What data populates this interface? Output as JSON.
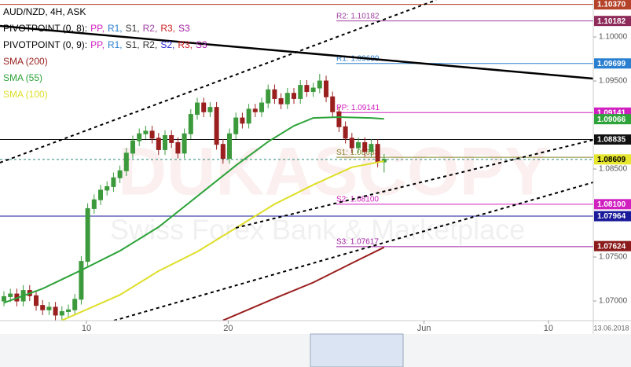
{
  "chart_data": {
    "type": "candlestick",
    "title": "AUD/NZD, 4H, ASK",
    "indicators": [
      {
        "name": "PIVOTPOINT (0, 8):",
        "items": [
          {
            "text": "PP,",
            "color": "#d020c0"
          },
          {
            "text": "R1,",
            "color": "#2a7fd0"
          },
          {
            "text": "S1,",
            "color": "#333333"
          },
          {
            "text": "R2,",
            "color": "#a040a0"
          },
          {
            "text": "R3,",
            "color": "#cc2222"
          },
          {
            "text": "S3",
            "color": "#a020a0"
          }
        ]
      },
      {
        "name": "PIVOTPOINT (0, 9):",
        "items": [
          {
            "text": "PP,",
            "color": "#d020c0"
          },
          {
            "text": "R1,",
            "color": "#2a7fd0"
          },
          {
            "text": "S1,",
            "color": "#333333"
          },
          {
            "text": "R2,",
            "color": "#333333"
          },
          {
            "text": "S2,",
            "color": "#2a2ad0"
          },
          {
            "text": "R3,",
            "color": "#cc2222"
          },
          {
            "text": "S3",
            "color": "#a020a0"
          }
        ]
      }
    ],
    "up_color": "#3c9a3c",
    "down_color": "#9a1f1f",
    "open": [
      1.07,
      1.0705,
      1.0708,
      1.07,
      1.0712,
      1.0706,
      1.0695,
      1.069,
      1.0693,
      1.0684,
      1.0688,
      1.069,
      1.0702,
      1.0745,
      1.0805,
      1.0815,
      1.0826,
      1.083,
      1.084,
      1.0848,
      1.0868,
      1.0882,
      1.089,
      1.0893,
      1.0885,
      1.0872,
      1.0888,
      1.088,
      1.0868,
      1.089,
      1.0912,
      1.0925,
      1.0915,
      1.092,
      1.0878,
      1.0862,
      1.089,
      1.0908,
      1.0902,
      1.0918,
      1.0915,
      1.0925,
      1.094,
      1.093,
      1.0924,
      1.0936,
      1.093,
      1.0945,
      1.0938,
      1.0942,
      1.095,
      1.0932,
      1.0915,
      1.0898,
      1.0885,
      1.0874,
      1.088,
      1.087,
      1.0878,
      1.0858
    ],
    "high": [
      1.0711,
      1.0714,
      1.0714,
      1.0718,
      1.0718,
      1.0712,
      1.0701,
      1.0699,
      1.0699,
      1.0694,
      1.0696,
      1.0708,
      1.0751,
      1.0811,
      1.0821,
      1.0832,
      1.0836,
      1.0846,
      1.0854,
      1.0874,
      1.0888,
      1.0896,
      1.0899,
      1.0899,
      1.0891,
      1.0894,
      1.0894,
      1.0886,
      1.0896,
      1.0918,
      1.0931,
      1.0931,
      1.0926,
      1.0926,
      1.0884,
      1.0896,
      1.0914,
      1.0914,
      1.0924,
      1.0924,
      1.0931,
      1.0946,
      1.0946,
      1.0936,
      1.0942,
      1.0942,
      1.0951,
      1.0951,
      1.0948,
      1.0958,
      1.0956,
      1.0938,
      1.0921,
      1.0904,
      1.0891,
      1.0886,
      1.0886,
      1.0884,
      1.0884,
      1.0867
    ],
    "low": [
      1.0694,
      1.0699,
      1.0694,
      1.0694,
      1.07,
      1.0689,
      1.0684,
      1.0684,
      1.0678,
      1.0678,
      1.0682,
      1.0684,
      1.0696,
      1.0739,
      1.0799,
      1.0809,
      1.082,
      1.0824,
      1.0834,
      1.0842,
      1.0862,
      1.0876,
      1.0884,
      1.0879,
      1.0866,
      1.0866,
      1.0874,
      1.0862,
      1.0862,
      1.0884,
      1.0906,
      1.0909,
      1.0909,
      1.0872,
      1.0856,
      1.0856,
      1.0884,
      1.0896,
      1.0896,
      1.0909,
      1.0909,
      1.0919,
      1.0924,
      1.0918,
      1.0918,
      1.0924,
      1.0924,
      1.0932,
      1.0932,
      1.0936,
      1.0926,
      1.0909,
      1.0892,
      1.0879,
      1.0868,
      1.0868,
      1.0864,
      1.0864,
      1.0852,
      1.0846
    ],
    "close": [
      1.0705,
      1.0708,
      1.07,
      1.0712,
      1.0706,
      1.0695,
      1.069,
      1.0693,
      1.0684,
      1.0688,
      1.069,
      1.0702,
      1.0745,
      1.0805,
      1.0815,
      1.0826,
      1.083,
      1.084,
      1.0848,
      1.0868,
      1.0882,
      1.089,
      1.0893,
      1.0885,
      1.0872,
      1.0888,
      1.088,
      1.0868,
      1.089,
      1.0912,
      1.0925,
      1.0915,
      1.092,
      1.0878,
      1.0862,
      1.089,
      1.0908,
      1.0902,
      1.0918,
      1.0915,
      1.0925,
      1.094,
      1.093,
      1.0924,
      1.0936,
      1.093,
      1.0945,
      1.0938,
      1.0942,
      1.095,
      1.0932,
      1.0915,
      1.0898,
      1.0885,
      1.0874,
      1.088,
      1.087,
      1.0878,
      1.0858,
      1.0861
    ],
    "series": [
      {
        "name": "SMA (200)",
        "color": "#9a1f1f",
        "x": [
          34,
          42,
          48,
          54,
          59
        ],
        "values": [
          1.0678,
          1.0703,
          1.0721,
          1.0743,
          1.0761
        ]
      },
      {
        "name": "SMA (55)",
        "color": "#2ea33a",
        "x": [
          0,
          6,
          12,
          18,
          24,
          30,
          36,
          41,
          45,
          48,
          52,
          57,
          59
        ],
        "values": [
          1.0698,
          1.0714,
          1.0735,
          1.0757,
          1.0784,
          1.0819,
          1.0854,
          1.0881,
          1.0899,
          1.0908,
          1.0909,
          1.0908,
          1.0907
        ]
      },
      {
        "name": "SMA (100)",
        "color": "#dede2a",
        "x": [
          9,
          18,
          24,
          30,
          36,
          42,
          48,
          54,
          59
        ],
        "values": [
          1.0678,
          1.0707,
          1.0734,
          1.0756,
          1.0783,
          1.081,
          1.0832,
          1.0852,
          1.0859
        ]
      }
    ],
    "xlim": [
      -0.61,
      91.46
    ],
    "xticks": [
      {
        "value": 12.8,
        "label": "10"
      },
      {
        "value": 34.8,
        "label": "20"
      },
      {
        "value": 65.2,
        "label": "Jun"
      },
      {
        "value": 84.5,
        "label": "10"
      }
    ],
    "cursor_date": "13.06.2018",
    "ylim": [
      1.06777,
      1.1042
    ],
    "yticks": [
      {
        "value": 1.07,
        "label": "1.07000"
      },
      {
        "value": 1.075,
        "label": "1.07500"
      },
      {
        "value": 1.085,
        "label": "1.08500"
      },
      {
        "value": 1.095,
        "label": "1.09500"
      },
      {
        "value": 1.1,
        "label": "1.10000"
      }
    ],
    "pivots": [
      {
        "label": "R2: 1.10182",
        "value": 1.10182,
        "color": "#a040a0"
      },
      {
        "label": "R1: 1.09699",
        "value": 1.09699,
        "color": "#2a7fd0"
      },
      {
        "label": "PP: 1.09141",
        "value": 1.09141,
        "color": "#d020c0"
      },
      {
        "label": "S1: 1.08633",
        "value": 1.08633,
        "color": "#8a8a30"
      },
      {
        "label": "S2: 1.08100",
        "value": 1.081,
        "color": "#d020c0"
      },
      {
        "label": "S3: 1.07617",
        "value": 1.07617,
        "color": "#a020a0"
      }
    ],
    "levels": [
      {
        "value": 1.1037,
        "label": "1.10370",
        "color": "#b5432a",
        "text_color": "#ffffff",
        "line": "full"
      },
      {
        "value": 1.10182,
        "label": "1.10182",
        "color": "#8e2b5a",
        "text_color": "#ffffff",
        "line": "none"
      },
      {
        "value": 1.09699,
        "label": "1.09699",
        "color": "#2a7fd0",
        "text_color": "#ffffff",
        "line": "none"
      },
      {
        "value": 1.09141,
        "label": "1.09141",
        "color": "#d020c0",
        "text_color": "#ffffff",
        "line": "none"
      },
      {
        "value": 1.09066,
        "label": "1.09066",
        "color": "#2ea33a",
        "text_color": "#ffffff",
        "line": "none"
      },
      {
        "value": 1.08835,
        "label": "1.08835",
        "color": "#111111",
        "text_color": "#ffffff",
        "line": "full"
      },
      {
        "value": 1.08609,
        "label": "1.08609",
        "color": "#e6e62e",
        "text_color": "#000000",
        "line": "dashed"
      },
      {
        "value": 1.081,
        "label": "1.08100",
        "color": "#d020c0",
        "text_color": "#ffffff",
        "line": "none"
      },
      {
        "value": 1.07964,
        "label": "1.07964",
        "color": "#1a1a9a",
        "text_color": "#ffffff",
        "line": "full"
      },
      {
        "value": 1.07624,
        "label": "1.07624",
        "color": "#8b1a1a",
        "text_color": "#ffffff",
        "line": "none"
      }
    ],
    "watermark": [
      "DUKASCOPY",
      "Swiss Forex Bank & Marketplace"
    ]
  }
}
